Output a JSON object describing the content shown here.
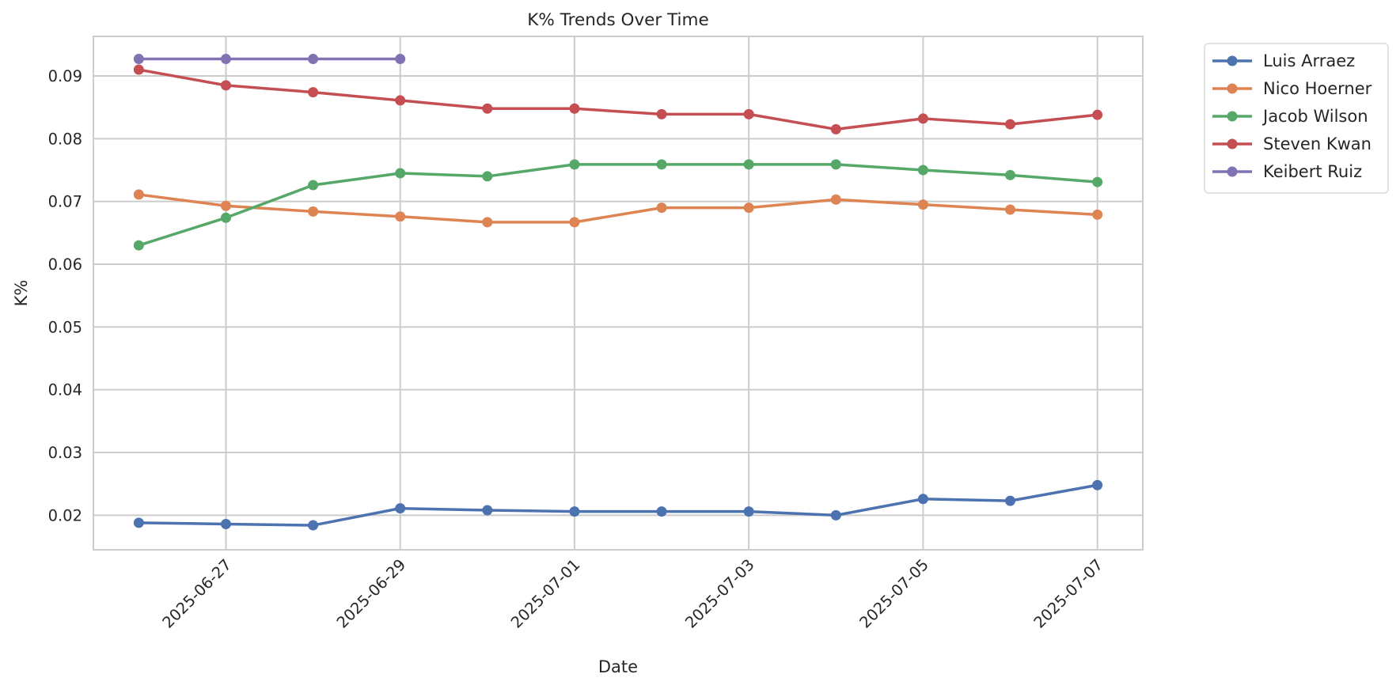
{
  "chart_data": {
    "type": "line",
    "title": "K% Trends Over Time",
    "xlabel": "Date",
    "ylabel": "K%",
    "x": [
      "2025-06-26",
      "2025-06-27",
      "2025-06-28",
      "2025-06-29",
      "2025-06-30",
      "2025-07-01",
      "2025-07-02",
      "2025-07-03",
      "2025-07-04",
      "2025-07-05",
      "2025-07-06",
      "2025-07-07"
    ],
    "x_ticks": [
      "2025-06-27",
      "2025-06-29",
      "2025-07-01",
      "2025-07-03",
      "2025-07-05",
      "2025-07-07"
    ],
    "y_ticks": [
      0.02,
      0.03,
      0.04,
      0.05,
      0.06,
      0.07,
      0.08,
      0.09
    ],
    "y_tick_labels": [
      "0.02",
      "0.03",
      "0.04",
      "0.05",
      "0.06",
      "0.07",
      "0.08",
      "0.09"
    ],
    "xlim": [
      "2025-06-25T11:30",
      "2025-07-07T12:30"
    ],
    "ylim": [
      0.0145,
      0.0963
    ],
    "grid": true,
    "legend_position": "outside-top-right",
    "series": [
      {
        "name": "Luis Arraez",
        "color": "#4c72b0",
        "values": [
          0.0188,
          0.0186,
          0.0184,
          0.0211,
          0.0208,
          0.0206,
          0.0206,
          0.0206,
          0.02,
          0.0226,
          0.0223,
          0.0248
        ]
      },
      {
        "name": "Nico Hoerner",
        "color": "#dd8452",
        "values": [
          0.0711,
          0.0693,
          0.0684,
          0.0676,
          0.0667,
          0.0667,
          0.069,
          0.069,
          0.0703,
          0.0695,
          0.0687,
          0.0679
        ]
      },
      {
        "name": "Jacob Wilson",
        "color": "#55a868",
        "values": [
          0.063,
          0.0674,
          0.0726,
          0.0745,
          0.074,
          0.0759,
          0.0759,
          0.0759,
          0.0759,
          0.075,
          0.0742,
          0.0731
        ]
      },
      {
        "name": "Steven Kwan",
        "color": "#c44e52",
        "values": [
          0.091,
          0.0885,
          0.0874,
          0.0861,
          0.0848,
          0.0848,
          0.0839,
          0.0839,
          0.0815,
          0.0832,
          0.0823,
          0.0838
        ]
      },
      {
        "name": "Keibert Ruiz",
        "color": "#8172b3",
        "values": [
          0.0927,
          0.0927,
          0.0927,
          0.0927,
          null,
          null,
          null,
          null,
          null,
          null,
          null,
          null
        ]
      }
    ]
  }
}
